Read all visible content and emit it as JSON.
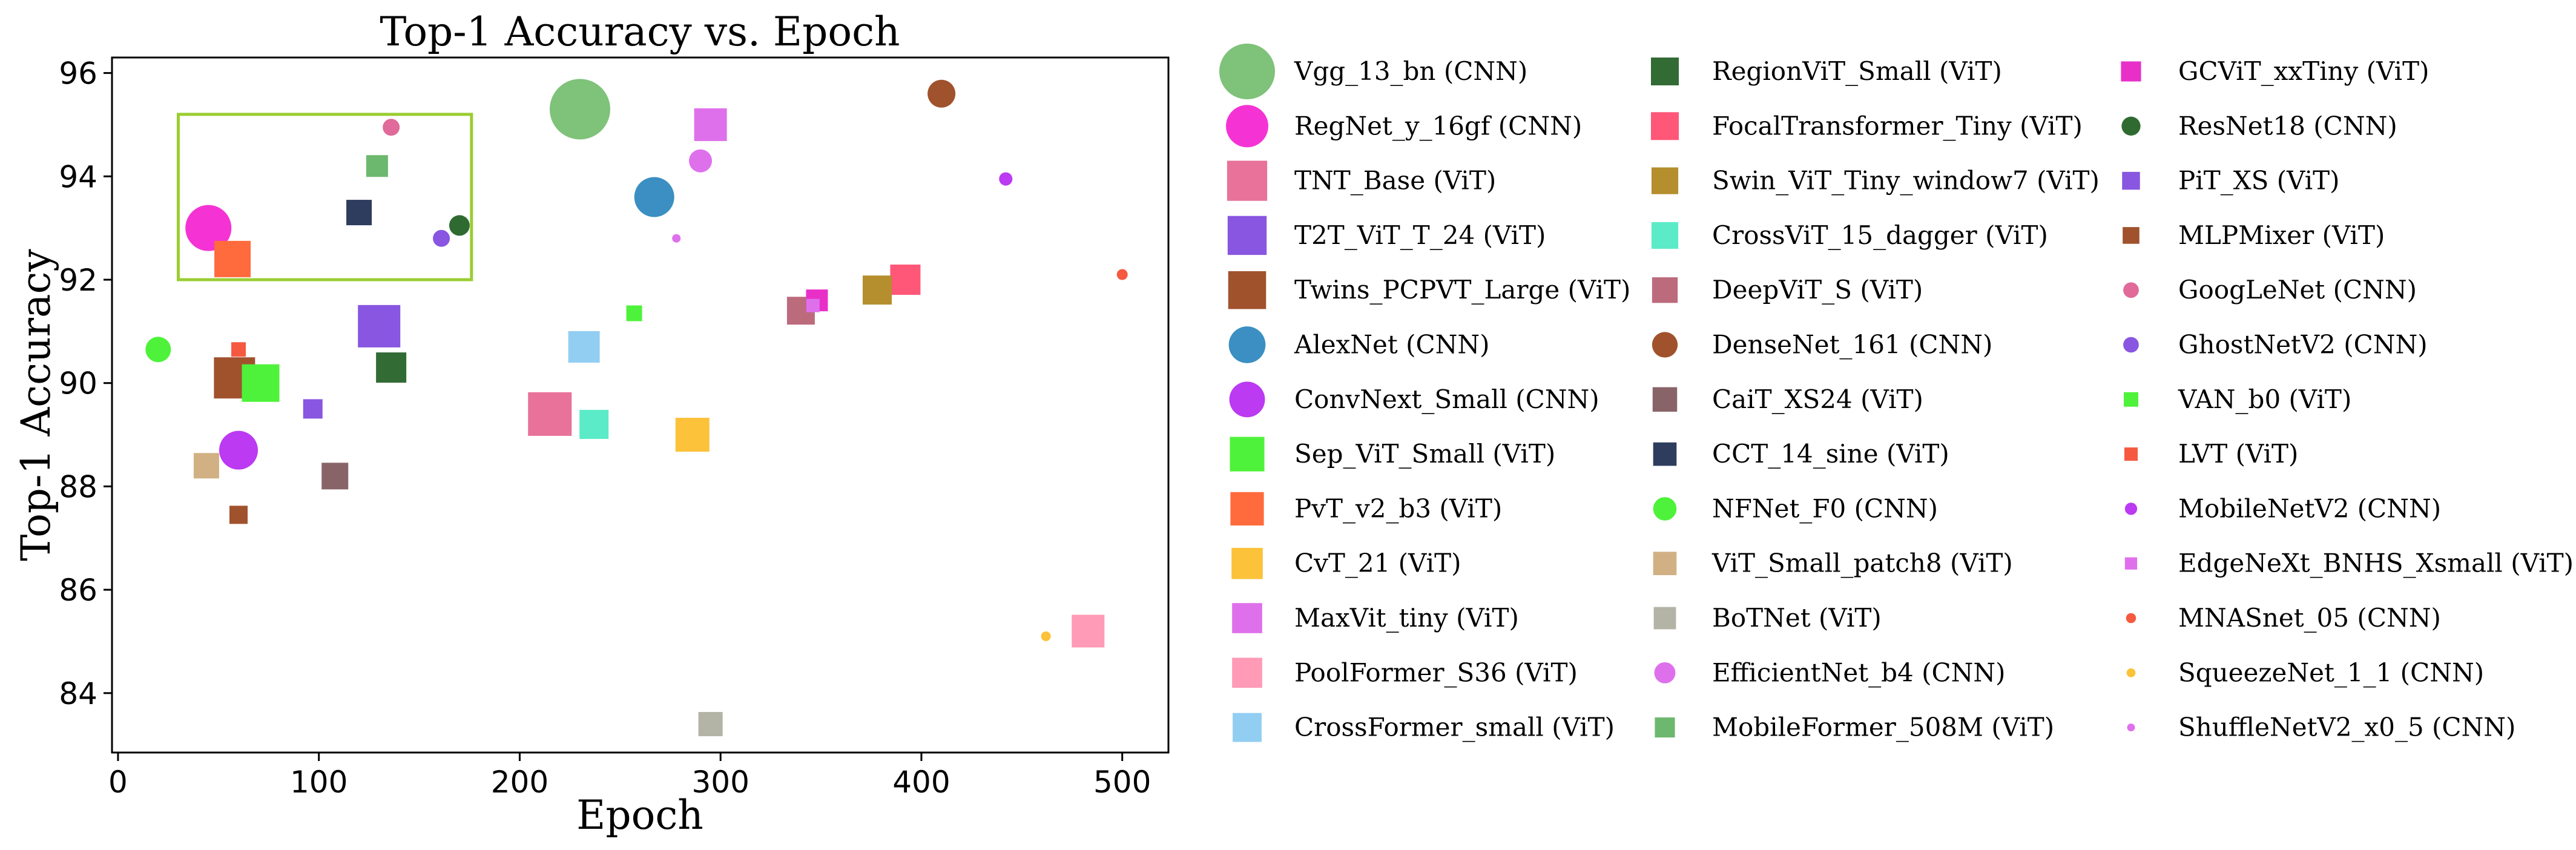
{
  "chart_data": {
    "type": "scatter",
    "title": "Top-1 Accuracy vs. Epoch",
    "xlabel": "Epoch",
    "ylabel": "Top-1 Accuracy",
    "xlim": [
      -3,
      523
    ],
    "ylim": [
      82.85,
      96.3
    ],
    "xticks": [
      0,
      100,
      200,
      300,
      400,
      500
    ],
    "yticks": [
      84,
      86,
      88,
      90,
      92,
      94,
      96
    ],
    "grid": false,
    "highlight_box": {
      "x": [
        30,
        176
      ],
      "y": [
        92.0,
        95.2
      ],
      "color": "#9ACD32"
    },
    "legend_columns": 3,
    "legend_position": "right-outside",
    "series": [
      {
        "name": "Vgg_13_bn (CNN)",
        "marker": "circle",
        "color": "#7FC27A",
        "size": 50,
        "x": 230,
        "y": 95.3
      },
      {
        "name": "RegNet_y_16gf (CNN)",
        "marker": "circle",
        "color": "#F533D4",
        "size": 38,
        "x": 45,
        "y": 93.0
      },
      {
        "name": "TNT_Base (ViT)",
        "marker": "square",
        "color": "#E8729A",
        "size": 36,
        "x": 215,
        "y": 89.4
      },
      {
        "name": "T2T_ViT_T_24 (ViT)",
        "marker": "square",
        "color": "#8856E0",
        "size": 35,
        "x": 130,
        "y": 91.1
      },
      {
        "name": "Twins_PCPVT_Large (ViT)",
        "marker": "square",
        "color": "#A0522D",
        "size": 34,
        "x": 58,
        "y": 90.1
      },
      {
        "name": "AlexNet (CNN)",
        "marker": "circle",
        "color": "#3B8FC2",
        "size": 33,
        "x": 267,
        "y": 93.6
      },
      {
        "name": "ConvNext_Small (CNN)",
        "marker": "circle",
        "color": "#BB3AF2",
        "size": 32,
        "x": 60,
        "y": 88.7
      },
      {
        "name": "Sep_ViT_Small (ViT)",
        "marker": "square",
        "color": "#4EF23A",
        "size": 31,
        "x": 71,
        "y": 90.0
      },
      {
        "name": "PvT_v2_b3 (ViT)",
        "marker": "square",
        "color": "#FF6B3D",
        "size": 30,
        "x": 57,
        "y": 92.4
      },
      {
        "name": "CvT_21 (ViT)",
        "marker": "square",
        "color": "#FBC23A",
        "size": 28,
        "x": 286,
        "y": 89.0
      },
      {
        "name": "MaxVit_tiny (ViT)",
        "marker": "square",
        "color": "#DF70EC",
        "size": 27,
        "x": 295,
        "y": 95.0
      },
      {
        "name": "PoolFormer_S36 (ViT)",
        "marker": "square",
        "color": "#FF9AB7",
        "size": 27,
        "x": 483,
        "y": 85.2
      },
      {
        "name": "CrossFormer_small (ViT)",
        "marker": "square",
        "color": "#92CEF2",
        "size": 26,
        "x": 232,
        "y": 90.7
      },
      {
        "name": "RegionViT_Small (ViT)",
        "marker": "square",
        "color": "#336B35",
        "size": 25,
        "x": 136,
        "y": 90.3
      },
      {
        "name": "FocalTransformer_Tiny (ViT)",
        "marker": "square",
        "color": "#FF5778",
        "size": 25,
        "x": 392,
        "y": 92.0
      },
      {
        "name": "Swin_ViT_Tiny_window7 (ViT)",
        "marker": "square",
        "color": "#B58E2D",
        "size": 24,
        "x": 378,
        "y": 91.8
      },
      {
        "name": "CrossViT_15_dagger (ViT)",
        "marker": "square",
        "color": "#5BEBC8",
        "size": 24,
        "x": 237,
        "y": 89.2
      },
      {
        "name": "DeepViT_S (ViT)",
        "marker": "square",
        "color": "#BC6B7D",
        "size": 23,
        "x": 340,
        "y": 91.4
      },
      {
        "name": "DenseNet_161 (CNN)",
        "marker": "circle",
        "color": "#A0522D",
        "size": 23,
        "x": 410,
        "y": 95.6
      },
      {
        "name": "CaiT_XS24 (ViT)",
        "marker": "square",
        "color": "#886469",
        "size": 22,
        "x": 108,
        "y": 88.2
      },
      {
        "name": "CCT_14_sine (ViT)",
        "marker": "square",
        "color": "#2E3D5E",
        "size": 21,
        "x": 120,
        "y": 93.3
      },
      {
        "name": "NFNet_F0 (CNN)",
        "marker": "circle",
        "color": "#4EF23A",
        "size": 21,
        "x": 20,
        "y": 90.65
      },
      {
        "name": "ViT_Small_patch8 (ViT)",
        "marker": "square",
        "color": "#D1B183",
        "size": 21,
        "x": 44,
        "y": 88.4
      },
      {
        "name": "BoTNet (ViT)",
        "marker": "square",
        "color": "#B3B3A6",
        "size": 20,
        "x": 295,
        "y": 83.4
      },
      {
        "name": "EfficientNet_b4 (CNN)",
        "marker": "circle",
        "color": "#DF70EC",
        "size": 19,
        "x": 290,
        "y": 94.3
      },
      {
        "name": "MobileFormer_508M (ViT)",
        "marker": "square",
        "color": "#6DB86F",
        "size": 18,
        "x": 129,
        "y": 94.2
      },
      {
        "name": "GCViT_xxTiny (ViT)",
        "marker": "square",
        "color": "#E830C8",
        "size": 18,
        "x": 348,
        "y": 91.6
      },
      {
        "name": "ResNet18 (CNN)",
        "marker": "circle",
        "color": "#2F6B31",
        "size": 17,
        "x": 170,
        "y": 93.05
      },
      {
        "name": "PiT_XS (ViT)",
        "marker": "square",
        "color": "#8856E0",
        "size": 16,
        "x": 97,
        "y": 89.5
      },
      {
        "name": "MLPMixer (ViT)",
        "marker": "square",
        "color": "#A0522D",
        "size": 15,
        "x": 60,
        "y": 87.45
      },
      {
        "name": "GoogLeNet (CNN)",
        "marker": "circle",
        "color": "#E06A9A",
        "size": 14,
        "x": 136,
        "y": 94.95
      },
      {
        "name": "GhostNetV2 (CNN)",
        "marker": "circle",
        "color": "#8856E0",
        "size": 14,
        "x": 161,
        "y": 92.8
      },
      {
        "name": "VAN_b0 (ViT)",
        "marker": "square",
        "color": "#4EF23A",
        "size": 13,
        "x": 257,
        "y": 91.35
      },
      {
        "name": "LVT (ViT)",
        "marker": "square",
        "color": "#F55A40",
        "size": 12,
        "x": 60,
        "y": 90.65
      },
      {
        "name": "MobileNetV2 (CNN)",
        "marker": "circle",
        "color": "#BB3AF2",
        "size": 11,
        "x": 442,
        "y": 93.95
      },
      {
        "name": "EdgeNeXt_BNHS_Xsmall (ViT)",
        "marker": "square",
        "color": "#DF70EC",
        "size": 11,
        "x": 346,
        "y": 91.5
      },
      {
        "name": "MNASnet_05 (CNN)",
        "marker": "circle",
        "color": "#F55A40",
        "size": 9,
        "x": 500,
        "y": 92.1
      },
      {
        "name": "SqueezeNet_1_1 (CNN)",
        "marker": "circle",
        "color": "#FBC23A",
        "size": 8,
        "x": 462,
        "y": 85.1
      },
      {
        "name": "ShuffleNetV2_x0_5 (CNN)",
        "marker": "circle",
        "color": "#DF70EC",
        "size": 7,
        "x": 278,
        "y": 92.8
      }
    ]
  }
}
